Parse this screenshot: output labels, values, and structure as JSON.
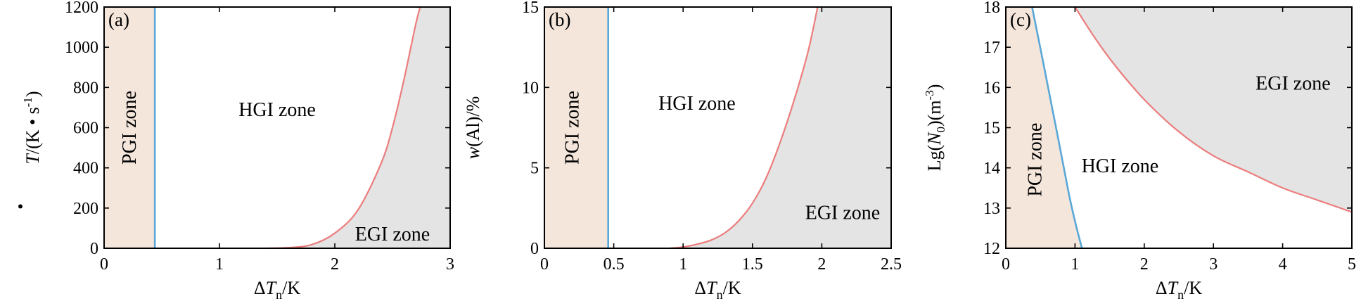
{
  "colors": {
    "pgi_fill": "#f5e6dc",
    "egi_fill": "#e4e4e4",
    "pgi_boundary": "#5aa8d8",
    "egi_boundary": "#ec7d7d",
    "axis": "#000000"
  },
  "chart_data": [
    {
      "type": "area",
      "panel_label": "(a)",
      "xlabel": "ΔT_n/K",
      "xlabel_main": "ΔT",
      "xlabel_sub": "n",
      "xlabel_tail": "/K",
      "ylabel": "Ṫ/(K • s-1)",
      "xlim": [
        0,
        3
      ],
      "ylim": [
        0,
        1200
      ],
      "xticks": [
        "0",
        "1",
        "2",
        "3"
      ],
      "yticks": [
        "0",
        "200",
        "400",
        "600",
        "800",
        "1000",
        "1200"
      ],
      "zones": [
        {
          "label": "PGI zone",
          "x": 0.22,
          "y": 600,
          "rotate": true
        },
        {
          "label": "HGI zone",
          "x": 1.5,
          "y": 690,
          "rotate": false
        },
        {
          "label": "EGI zone",
          "x": 2.5,
          "y": 70,
          "rotate": false
        }
      ],
      "pgi_boundary_x": 0.44,
      "egi_curve": [
        [
          1.4,
          0
        ],
        [
          1.6,
          3
        ],
        [
          1.8,
          18
        ],
        [
          2.0,
          75
        ],
        [
          2.2,
          190
        ],
        [
          2.4,
          420
        ],
        [
          2.5,
          600
        ],
        [
          2.6,
          840
        ],
        [
          2.7,
          1110
        ],
        [
          2.74,
          1200
        ]
      ],
      "egi_fill_corner": "bottom-right"
    },
    {
      "type": "area",
      "panel_label": "(b)",
      "xlabel": "ΔT_n/K",
      "xlabel_main": "ΔT",
      "xlabel_sub": "n",
      "xlabel_tail": "/K",
      "ylabel": "w(Al)/%",
      "xlim": [
        0,
        2.5
      ],
      "ylim": [
        0,
        15
      ],
      "xticks": [
        "0",
        "0.5",
        "1",
        "1.5",
        "2",
        "2.5"
      ],
      "yticks": [
        "0",
        "5",
        "10",
        "15"
      ],
      "zones": [
        {
          "label": "PGI zone",
          "x": 0.2,
          "y": 7.5,
          "rotate": true
        },
        {
          "label": "HGI zone",
          "x": 1.1,
          "y": 9.0,
          "rotate": false
        },
        {
          "label": "EGI zone",
          "x": 2.15,
          "y": 2.2,
          "rotate": false
        }
      ],
      "pgi_boundary_x": 0.46,
      "egi_curve": [
        [
          0.9,
          0
        ],
        [
          1.0,
          0.08
        ],
        [
          1.1,
          0.25
        ],
        [
          1.2,
          0.5
        ],
        [
          1.3,
          0.95
        ],
        [
          1.4,
          1.7
        ],
        [
          1.5,
          2.8
        ],
        [
          1.6,
          4.4
        ],
        [
          1.7,
          6.6
        ],
        [
          1.8,
          9.2
        ],
        [
          1.9,
          12.2
        ],
        [
          1.97,
          15
        ]
      ],
      "egi_fill_corner": "bottom-right"
    },
    {
      "type": "area",
      "panel_label": "(c)",
      "xlabel": "ΔT_n/K",
      "xlabel_main": "ΔT",
      "xlabel_sub": "n",
      "xlabel_tail": "/K",
      "ylabel": "Lg(N0)(m-3)",
      "xlim": [
        0,
        5
      ],
      "ylim": [
        12,
        18
      ],
      "xticks": [
        "0",
        "1",
        "2",
        "3",
        "4",
        "5"
      ],
      "yticks": [
        "12",
        "13",
        "14",
        "15",
        "16",
        "17",
        "18"
      ],
      "zones": [
        {
          "label": "PGI zone",
          "x": 0.42,
          "y": 14.2,
          "rotate": true
        },
        {
          "label": "HGI zone",
          "x": 1.65,
          "y": 14.05,
          "rotate": false
        },
        {
          "label": "EGI zone",
          "x": 4.15,
          "y": 16.1,
          "rotate": false
        }
      ],
      "pgi_curve": [
        [
          0.38,
          18
        ],
        [
          0.45,
          17.4
        ],
        [
          0.52,
          16.8
        ],
        [
          0.6,
          16.1
        ],
        [
          0.68,
          15.4
        ],
        [
          0.76,
          14.7
        ],
        [
          0.85,
          13.9
        ],
        [
          0.93,
          13.2
        ],
        [
          1.01,
          12.6
        ],
        [
          1.1,
          12
        ]
      ],
      "egi_curve": [
        [
          1.0,
          18
        ],
        [
          1.3,
          17.2
        ],
        [
          1.6,
          16.5
        ],
        [
          2.0,
          15.7
        ],
        [
          2.5,
          14.9
        ],
        [
          3.0,
          14.3
        ],
        [
          3.5,
          13.9
        ],
        [
          4.0,
          13.5
        ],
        [
          4.5,
          13.2
        ],
        [
          5.0,
          12.9
        ]
      ],
      "pgi_fill_corner": "bottom-left",
      "egi_fill_corner": "top-right"
    }
  ]
}
